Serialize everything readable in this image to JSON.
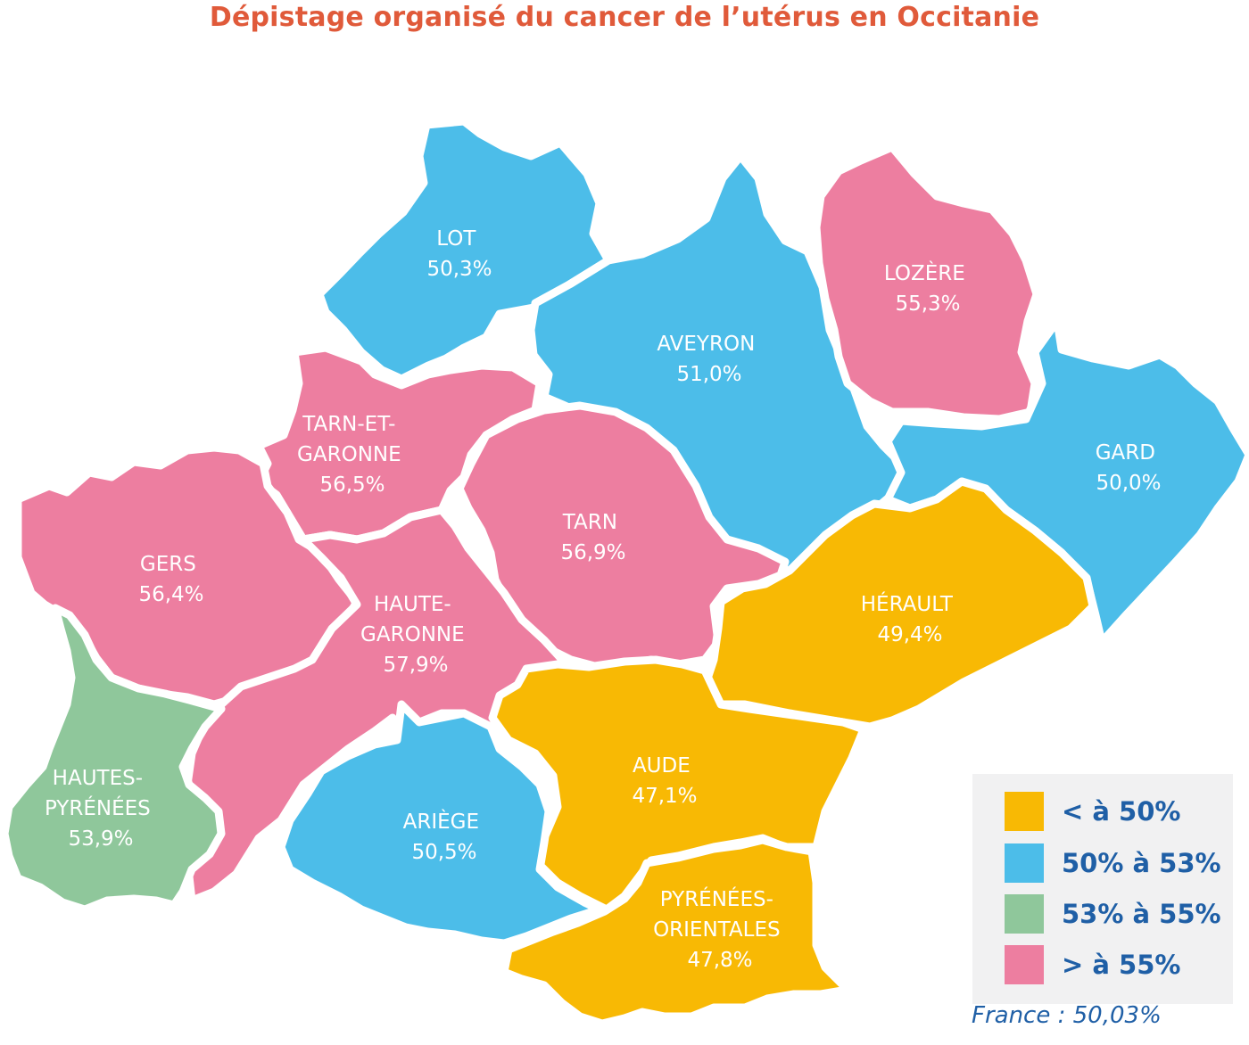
{
  "title": "Dépistage organisé du cancer de l’utérus en Occitanie",
  "colors": {
    "below_50": "#f8b904",
    "50_53": "#4cbde9",
    "53_55": "#8fc79b",
    "above_55": "#ed7ea0",
    "title": "#e05a3a",
    "legend_text": "#1f5fa6"
  },
  "departments": {
    "lot": {
      "lines": [
        "LOT"
      ],
      "value": "50,3%",
      "category": "50_53"
    },
    "aveyron": {
      "lines": [
        "AVEYRON"
      ],
      "value": "51,0%",
      "category": "50_53"
    },
    "lozere": {
      "lines": [
        "LOZÈRE"
      ],
      "value": "55,3%",
      "category": "above_55"
    },
    "gard": {
      "lines": [
        "GARD"
      ],
      "value": "50,0%",
      "category": "50_53"
    },
    "tarn_et_garonne": {
      "lines": [
        "TARN-ET-",
        "GARONNE"
      ],
      "value": "56,5%",
      "category": "above_55"
    },
    "tarn": {
      "lines": [
        "TARN"
      ],
      "value": "56,9%",
      "category": "above_55"
    },
    "gers": {
      "lines": [
        "GERS"
      ],
      "value": "56,4%",
      "category": "above_55"
    },
    "haute_garonne": {
      "lines": [
        "HAUTE-",
        "GARONNE"
      ],
      "value": "57,9%",
      "category": "above_55"
    },
    "herault": {
      "lines": [
        "HÉRAULT"
      ],
      "value": "49,4%",
      "category": "below_50"
    },
    "aude": {
      "lines": [
        "AUDE"
      ],
      "value": "47,1%",
      "category": "below_50"
    },
    "hautes_pyrenees": {
      "lines": [
        "HAUTES-",
        "PYRÉNÉES"
      ],
      "value": "53,9%",
      "category": "53_55"
    },
    "ariege": {
      "lines": [
        "ARIÈGE"
      ],
      "value": "50,5%",
      "category": "50_53"
    },
    "pyrenees_orientales": {
      "lines": [
        "PYRÉNÉES-",
        "ORIENTALES"
      ],
      "value": "47,8%",
      "category": "below_50"
    }
  },
  "legend": [
    {
      "label": "< à 50%",
      "category": "below_50"
    },
    {
      "label": "50% à 53%",
      "category": "50_53"
    },
    {
      "label": "53% à 55%",
      "category": "53_55"
    },
    {
      "label": "> à 55%",
      "category": "above_55"
    }
  ],
  "footnote": "France : 50,03%"
}
